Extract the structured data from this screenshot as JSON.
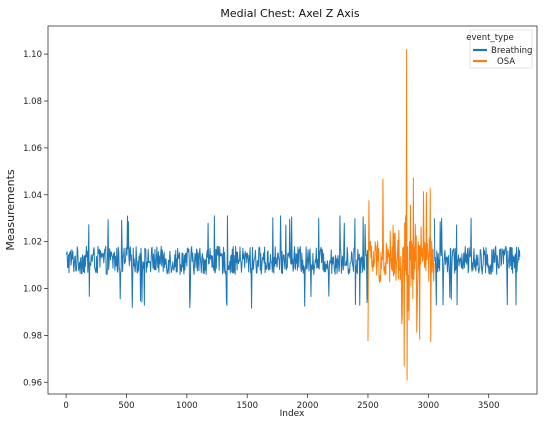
{
  "chart_data": {
    "type": "line",
    "title": "Medial Chest: Axel Z Axis",
    "xlabel": "Index",
    "ylabel": "Measurements",
    "xlim": [
      -150,
      3900
    ],
    "ylim": [
      0.955,
      1.112
    ],
    "xticks": [
      0,
      500,
      1000,
      1500,
      2000,
      2500,
      3000,
      3500
    ],
    "yticks": [
      0.96,
      0.98,
      1.0,
      1.02,
      1.04,
      1.06,
      1.08,
      1.1
    ],
    "ytick_labels": [
      "0.96",
      "0.98",
      "1.00",
      "1.02",
      "1.04",
      "1.06",
      "1.08",
      "1.10"
    ],
    "grid": false,
    "legend": {
      "title": "event_type",
      "placement": "top-right"
    },
    "series": [
      {
        "name": "Breathing",
        "color": "#1f77b4",
        "segments": [
          {
            "x_start": 0,
            "x_end": 2500,
            "baseline": 1.012,
            "amplitude": 0.006,
            "min": 0.991,
            "max": 1.031
          },
          {
            "x_start": 3050,
            "x_end": 3760,
            "baseline": 1.012,
            "amplitude": 0.006,
            "min": 0.993,
            "max": 1.03
          }
        ]
      },
      {
        "name": "OSA",
        "color": "#ff7f0e",
        "segments": [
          {
            "x_start": 2500,
            "x_end": 3050,
            "baseline": 1.012,
            "amplitude": 0.01,
            "min": 0.961,
            "max": 1.102
          }
        ],
        "peaks": [
          {
            "x": 2820,
            "y": 1.102
          },
          {
            "x": 2825,
            "y": 0.961
          },
          {
            "x": 2800,
            "y": 0.967
          },
          {
            "x": 2780,
            "y": 0.985
          }
        ]
      }
    ]
  }
}
